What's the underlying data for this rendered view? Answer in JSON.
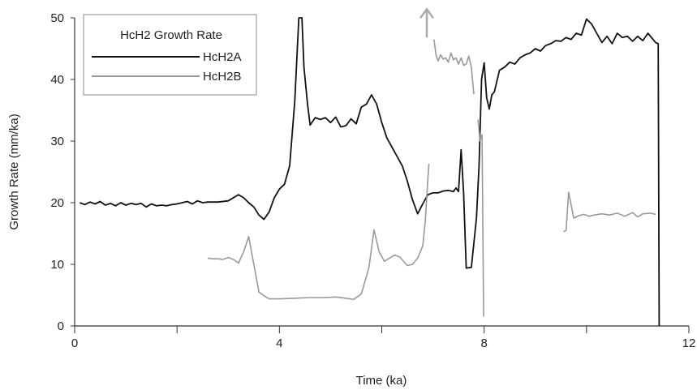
{
  "chart_data": {
    "type": "line",
    "title": "",
    "xlabel": "Time (ka)",
    "ylabel": "Growth Rate (mm/ka)",
    "xlim": [
      0,
      12
    ],
    "ylim": [
      0,
      50
    ],
    "x_ticks": [
      0,
      4,
      8,
      12
    ],
    "x_minor_ticks": [
      2,
      6,
      10
    ],
    "y_ticks": [
      0,
      10,
      20,
      30,
      40,
      50
    ],
    "grid": false,
    "legend": {
      "title": "HcH2 Growth Rate",
      "position": "top-left"
    },
    "series": [
      {
        "name": "HcH2A",
        "color": "#111111",
        "points": [
          [
            0.1,
            20.0
          ],
          [
            0.2,
            19.7
          ],
          [
            0.3,
            20.1
          ],
          [
            0.4,
            19.8
          ],
          [
            0.5,
            20.2
          ],
          [
            0.6,
            19.6
          ],
          [
            0.7,
            19.9
          ],
          [
            0.8,
            19.5
          ],
          [
            0.9,
            20.0
          ],
          [
            1.0,
            19.6
          ],
          [
            1.1,
            19.9
          ],
          [
            1.2,
            19.7
          ],
          [
            1.3,
            19.9
          ],
          [
            1.4,
            19.3
          ],
          [
            1.5,
            19.8
          ],
          [
            1.6,
            19.5
          ],
          [
            1.7,
            19.6
          ],
          [
            1.8,
            19.5
          ],
          [
            1.9,
            19.7
          ],
          [
            2.0,
            19.8
          ],
          [
            2.1,
            20.0
          ],
          [
            2.2,
            20.2
          ],
          [
            2.3,
            19.8
          ],
          [
            2.4,
            20.3
          ],
          [
            2.5,
            20.0
          ],
          [
            2.6,
            20.1
          ],
          [
            2.8,
            20.1
          ],
          [
            3.0,
            20.3
          ],
          [
            3.2,
            21.3
          ],
          [
            3.3,
            20.8
          ],
          [
            3.4,
            20.0
          ],
          [
            3.5,
            19.3
          ],
          [
            3.6,
            18.0
          ],
          [
            3.7,
            17.3
          ],
          [
            3.8,
            18.5
          ],
          [
            3.9,
            20.8
          ],
          [
            4.0,
            22.2
          ],
          [
            4.1,
            23.0
          ],
          [
            4.2,
            26.0
          ],
          [
            4.3,
            36.5
          ],
          [
            4.38,
            50.0
          ],
          [
            4.44,
            50.0
          ],
          [
            4.48,
            42.0
          ],
          [
            4.55,
            36.0
          ],
          [
            4.6,
            32.6
          ],
          [
            4.7,
            33.8
          ],
          [
            4.8,
            33.5
          ],
          [
            4.9,
            33.8
          ],
          [
            5.0,
            33.0
          ],
          [
            5.1,
            33.9
          ],
          [
            5.2,
            32.3
          ],
          [
            5.3,
            32.5
          ],
          [
            5.4,
            33.6
          ],
          [
            5.5,
            32.8
          ],
          [
            5.6,
            35.5
          ],
          [
            5.7,
            36.0
          ],
          [
            5.8,
            37.5
          ],
          [
            5.9,
            36.0
          ],
          [
            6.0,
            33.0
          ],
          [
            6.1,
            30.5
          ],
          [
            6.2,
            29.0
          ],
          [
            6.3,
            27.5
          ],
          [
            6.4,
            26.0
          ],
          [
            6.5,
            23.5
          ],
          [
            6.6,
            20.5
          ],
          [
            6.7,
            18.2
          ],
          [
            6.8,
            19.8
          ],
          [
            6.9,
            21.3
          ],
          [
            7.0,
            21.6
          ],
          [
            7.1,
            21.6
          ],
          [
            7.2,
            21.9
          ],
          [
            7.3,
            22.0
          ],
          [
            7.4,
            21.8
          ],
          [
            7.45,
            22.4
          ],
          [
            7.5,
            21.8
          ],
          [
            7.55,
            28.6
          ],
          [
            7.6,
            21.5
          ],
          [
            7.65,
            9.4
          ],
          [
            7.75,
            9.5
          ],
          [
            7.85,
            17.5
          ],
          [
            7.9,
            26.0
          ],
          [
            7.95,
            40.0
          ],
          [
            8.0,
            42.7
          ],
          [
            8.05,
            37.0
          ],
          [
            8.1,
            35.2
          ],
          [
            8.15,
            37.5
          ],
          [
            8.2,
            38.0
          ],
          [
            8.3,
            41.5
          ],
          [
            8.4,
            42.0
          ],
          [
            8.5,
            42.8
          ],
          [
            8.6,
            42.5
          ],
          [
            8.7,
            43.5
          ],
          [
            8.8,
            44.0
          ],
          [
            8.9,
            44.3
          ],
          [
            9.0,
            45.0
          ],
          [
            9.1,
            44.6
          ],
          [
            9.2,
            45.5
          ],
          [
            9.3,
            45.8
          ],
          [
            9.4,
            46.3
          ],
          [
            9.5,
            46.2
          ],
          [
            9.6,
            46.8
          ],
          [
            9.7,
            46.5
          ],
          [
            9.8,
            47.5
          ],
          [
            9.9,
            47.2
          ],
          [
            10.0,
            49.8
          ],
          [
            10.1,
            49.0
          ],
          [
            10.2,
            47.5
          ],
          [
            10.3,
            46.0
          ],
          [
            10.4,
            47.0
          ],
          [
            10.5,
            45.8
          ],
          [
            10.6,
            47.5
          ],
          [
            10.7,
            46.8
          ],
          [
            10.8,
            47.0
          ],
          [
            10.9,
            46.2
          ],
          [
            11.0,
            47.0
          ],
          [
            11.1,
            46.3
          ],
          [
            11.2,
            47.5
          ],
          [
            11.3,
            46.5
          ],
          [
            11.35,
            46.0
          ],
          [
            11.4,
            45.8
          ],
          [
            11.42,
            0.0
          ]
        ]
      },
      {
        "name": "HcH2B",
        "color": "#999999",
        "segments": [
          [
            [
              2.6,
              11.0
            ],
            [
              2.7,
              10.9
            ],
            [
              2.8,
              10.9
            ],
            [
              2.9,
              10.8
            ],
            [
              3.0,
              11.1
            ],
            [
              3.1,
              10.8
            ],
            [
              3.2,
              10.2
            ],
            [
              3.3,
              12.0
            ],
            [
              3.4,
              14.5
            ],
            [
              3.5,
              10.0
            ],
            [
              3.6,
              5.5
            ],
            [
              3.7,
              4.9
            ],
            [
              3.8,
              4.4
            ],
            [
              4.0,
              4.4
            ],
            [
              4.3,
              4.5
            ],
            [
              4.6,
              4.6
            ],
            [
              4.9,
              4.6
            ],
            [
              5.1,
              4.7
            ],
            [
              5.3,
              4.5
            ],
            [
              5.45,
              4.3
            ],
            [
              5.6,
              5.2
            ],
            [
              5.75,
              9.5
            ],
            [
              5.85,
              15.6
            ],
            [
              5.95,
              12.0
            ],
            [
              6.05,
              10.5
            ],
            [
              6.15,
              11.0
            ],
            [
              6.25,
              11.5
            ],
            [
              6.35,
              11.2
            ],
            [
              6.5,
              9.8
            ],
            [
              6.6,
              10.0
            ],
            [
              6.7,
              11.0
            ],
            [
              6.8,
              13.0
            ],
            [
              6.85,
              17.0
            ],
            [
              6.92,
              26.3
            ]
          ],
          [
            [
              7.02,
              46.5
            ],
            [
              7.06,
              44.0
            ],
            [
              7.1,
              43.0
            ],
            [
              7.15,
              44.0
            ],
            [
              7.2,
              43.3
            ],
            [
              7.25,
              43.5
            ],
            [
              7.3,
              42.8
            ],
            [
              7.35,
              44.3
            ],
            [
              7.4,
              43.2
            ],
            [
              7.45,
              43.5
            ],
            [
              7.5,
              42.5
            ],
            [
              7.55,
              43.5
            ],
            [
              7.6,
              42.3
            ],
            [
              7.65,
              42.5
            ],
            [
              7.7,
              43.8
            ],
            [
              7.75,
              42.0
            ],
            [
              7.8,
              37.6
            ]
          ],
          [
            [
              7.88,
              33.5
            ],
            [
              7.92,
              30.0
            ],
            [
              7.96,
              31.0
            ],
            [
              7.99,
              1.5
            ]
          ],
          [
            [
              9.55,
              15.3
            ],
            [
              9.6,
              15.5
            ],
            [
              9.65,
              21.7
            ],
            [
              9.75,
              17.5
            ],
            [
              9.85,
              17.9
            ],
            [
              9.95,
              18.1
            ],
            [
              10.05,
              17.8
            ],
            [
              10.15,
              18.0
            ],
            [
              10.3,
              18.2
            ],
            [
              10.45,
              18.0
            ],
            [
              10.6,
              18.3
            ],
            [
              10.75,
              17.8
            ],
            [
              10.9,
              18.4
            ],
            [
              11.0,
              17.7
            ],
            [
              11.1,
              18.2
            ],
            [
              11.25,
              18.3
            ],
            [
              11.35,
              18.1
            ]
          ]
        ]
      }
    ],
    "annotations": [
      {
        "type": "arrow-up",
        "x": 6.88,
        "y": 46.8,
        "color": "#aaaaaa"
      }
    ]
  }
}
